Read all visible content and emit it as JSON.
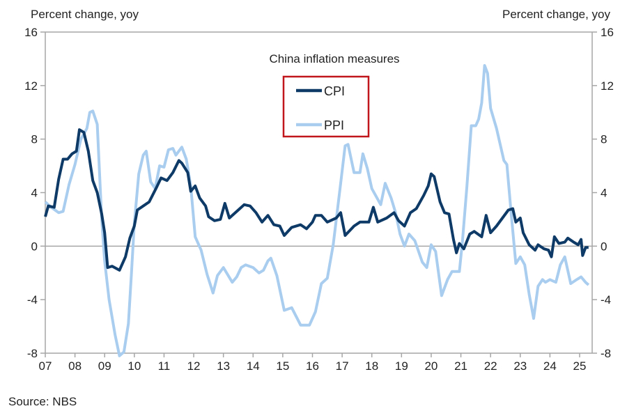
{
  "chart_data": {
    "type": "line",
    "title": "China inflation measures",
    "ylabel_left": "Percent change, yoy",
    "ylabel_right": "Percent change, yoy",
    "source": "Source:  NBS",
    "ylim": [
      -8,
      16
    ],
    "yticks": [
      16,
      12,
      8,
      4,
      0,
      -4,
      -8
    ],
    "xlim": [
      2007,
      2025.4
    ],
    "xticks": [
      2007,
      2008,
      2009,
      2010,
      2011,
      2012,
      2013,
      2014,
      2015,
      2016,
      2017,
      2018,
      2019,
      2020,
      2021,
      2022,
      2023,
      2024,
      2025
    ],
    "xtick_labels": [
      "07",
      "08",
      "09",
      "10",
      "11",
      "12",
      "13",
      "14",
      "15",
      "16",
      "17",
      "18",
      "19",
      "20",
      "21",
      "22",
      "23",
      "24",
      "25"
    ],
    "grid": false,
    "legend": {
      "placement": "top-center",
      "highlight_border_color": "#c0161c"
    },
    "series": [
      {
        "name": "CPI",
        "color": "#0d3a66",
        "points": [
          [
            2007.0,
            2.2
          ],
          [
            2007.1,
            3.0
          ],
          [
            2007.3,
            2.9
          ],
          [
            2007.45,
            5.0
          ],
          [
            2007.6,
            6.5
          ],
          [
            2007.75,
            6.5
          ],
          [
            2007.9,
            6.9
          ],
          [
            2008.05,
            7.1
          ],
          [
            2008.15,
            8.7
          ],
          [
            2008.3,
            8.5
          ],
          [
            2008.45,
            7.1
          ],
          [
            2008.6,
            4.9
          ],
          [
            2008.75,
            4.0
          ],
          [
            2008.9,
            2.4
          ],
          [
            2009.0,
            1.0
          ],
          [
            2009.1,
            -1.6
          ],
          [
            2009.25,
            -1.5
          ],
          [
            2009.5,
            -1.8
          ],
          [
            2009.7,
            -0.8
          ],
          [
            2009.85,
            0.6
          ],
          [
            2010.0,
            1.5
          ],
          [
            2010.1,
            2.7
          ],
          [
            2010.3,
            3.0
          ],
          [
            2010.5,
            3.3
          ],
          [
            2010.75,
            4.4
          ],
          [
            2010.9,
            5.1
          ],
          [
            2011.1,
            4.9
          ],
          [
            2011.3,
            5.5
          ],
          [
            2011.5,
            6.4
          ],
          [
            2011.6,
            6.2
          ],
          [
            2011.8,
            5.5
          ],
          [
            2011.9,
            4.1
          ],
          [
            2012.05,
            4.5
          ],
          [
            2012.2,
            3.6
          ],
          [
            2012.4,
            3.0
          ],
          [
            2012.5,
            2.2
          ],
          [
            2012.7,
            1.9
          ],
          [
            2012.9,
            2.0
          ],
          [
            2013.05,
            3.2
          ],
          [
            2013.2,
            2.1
          ],
          [
            2013.5,
            2.7
          ],
          [
            2013.7,
            3.1
          ],
          [
            2013.9,
            3.0
          ],
          [
            2014.1,
            2.5
          ],
          [
            2014.3,
            1.8
          ],
          [
            2014.5,
            2.3
          ],
          [
            2014.7,
            1.6
          ],
          [
            2014.9,
            1.5
          ],
          [
            2015.05,
            0.8
          ],
          [
            2015.3,
            1.4
          ],
          [
            2015.6,
            1.6
          ],
          [
            2015.8,
            1.3
          ],
          [
            2016.0,
            1.8
          ],
          [
            2016.1,
            2.3
          ],
          [
            2016.3,
            2.3
          ],
          [
            2016.5,
            1.8
          ],
          [
            2016.8,
            2.1
          ],
          [
            2016.95,
            2.5
          ],
          [
            2017.1,
            0.8
          ],
          [
            2017.4,
            1.5
          ],
          [
            2017.6,
            1.8
          ],
          [
            2017.9,
            1.8
          ],
          [
            2018.05,
            2.9
          ],
          [
            2018.2,
            1.8
          ],
          [
            2018.5,
            2.1
          ],
          [
            2018.75,
            2.5
          ],
          [
            2018.9,
            1.9
          ],
          [
            2019.1,
            1.5
          ],
          [
            2019.3,
            2.5
          ],
          [
            2019.5,
            2.8
          ],
          [
            2019.75,
            3.8
          ],
          [
            2019.9,
            4.5
          ],
          [
            2020.0,
            5.4
          ],
          [
            2020.1,
            5.2
          ],
          [
            2020.3,
            3.3
          ],
          [
            2020.45,
            2.5
          ],
          [
            2020.6,
            2.4
          ],
          [
            2020.75,
            0.5
          ],
          [
            2020.85,
            -0.5
          ],
          [
            2020.95,
            0.2
          ],
          [
            2021.1,
            -0.2
          ],
          [
            2021.3,
            0.9
          ],
          [
            2021.45,
            1.1
          ],
          [
            2021.7,
            0.7
          ],
          [
            2021.85,
            2.3
          ],
          [
            2022.0,
            1.0
          ],
          [
            2022.2,
            1.5
          ],
          [
            2022.4,
            2.1
          ],
          [
            2022.6,
            2.7
          ],
          [
            2022.75,
            2.8
          ],
          [
            2022.85,
            1.8
          ],
          [
            2023.0,
            2.1
          ],
          [
            2023.1,
            1.0
          ],
          [
            2023.3,
            0.1
          ],
          [
            2023.5,
            -0.3
          ],
          [
            2023.6,
            0.1
          ],
          [
            2023.8,
            -0.2
          ],
          [
            2023.95,
            -0.3
          ],
          [
            2024.05,
            -0.8
          ],
          [
            2024.15,
            0.7
          ],
          [
            2024.3,
            0.2
          ],
          [
            2024.5,
            0.3
          ],
          [
            2024.6,
            0.6
          ],
          [
            2024.8,
            0.3
          ],
          [
            2024.95,
            0.1
          ],
          [
            2025.05,
            0.5
          ],
          [
            2025.1,
            -0.7
          ],
          [
            2025.2,
            -0.1
          ],
          [
            2025.3,
            -0.1
          ]
        ]
      },
      {
        "name": "PPI",
        "color": "#a9cdee",
        "points": [
          [
            2007.0,
            3.3
          ],
          [
            2007.2,
            2.9
          ],
          [
            2007.45,
            2.5
          ],
          [
            2007.6,
            2.6
          ],
          [
            2007.8,
            4.6
          ],
          [
            2008.0,
            6.1
          ],
          [
            2008.2,
            8.0
          ],
          [
            2008.4,
            8.8
          ],
          [
            2008.5,
            10.0
          ],
          [
            2008.6,
            10.1
          ],
          [
            2008.75,
            9.1
          ],
          [
            2008.9,
            2.0
          ],
          [
            2009.0,
            -1.1
          ],
          [
            2009.15,
            -4.0
          ],
          [
            2009.35,
            -6.6
          ],
          [
            2009.5,
            -8.2
          ],
          [
            2009.65,
            -7.9
          ],
          [
            2009.8,
            -5.8
          ],
          [
            2009.9,
            -2.1
          ],
          [
            2010.0,
            1.7
          ],
          [
            2010.15,
            5.4
          ],
          [
            2010.3,
            6.8
          ],
          [
            2010.4,
            7.1
          ],
          [
            2010.55,
            4.8
          ],
          [
            2010.7,
            4.3
          ],
          [
            2010.85,
            6.0
          ],
          [
            2011.0,
            5.9
          ],
          [
            2011.15,
            7.2
          ],
          [
            2011.3,
            7.3
          ],
          [
            2011.4,
            6.8
          ],
          [
            2011.6,
            7.4
          ],
          [
            2011.75,
            6.5
          ],
          [
            2011.9,
            4.5
          ],
          [
            2012.05,
            0.7
          ],
          [
            2012.25,
            -0.3
          ],
          [
            2012.45,
            -2.1
          ],
          [
            2012.65,
            -3.5
          ],
          [
            2012.8,
            -2.2
          ],
          [
            2013.0,
            -1.6
          ],
          [
            2013.3,
            -2.7
          ],
          [
            2013.45,
            -2.3
          ],
          [
            2013.6,
            -1.6
          ],
          [
            2013.75,
            -1.4
          ],
          [
            2014.0,
            -1.6
          ],
          [
            2014.2,
            -2.0
          ],
          [
            2014.35,
            -1.8
          ],
          [
            2014.5,
            -1.1
          ],
          [
            2014.6,
            -0.9
          ],
          [
            2014.8,
            -2.2
          ],
          [
            2015.05,
            -4.8
          ],
          [
            2015.3,
            -4.6
          ],
          [
            2015.6,
            -5.9
          ],
          [
            2015.9,
            -5.9
          ],
          [
            2016.1,
            -4.9
          ],
          [
            2016.3,
            -2.8
          ],
          [
            2016.5,
            -2.4
          ],
          [
            2016.7,
            0.1
          ],
          [
            2016.95,
            4.7
          ],
          [
            2017.1,
            7.5
          ],
          [
            2017.2,
            7.6
          ],
          [
            2017.4,
            5.5
          ],
          [
            2017.6,
            5.5
          ],
          [
            2017.7,
            6.9
          ],
          [
            2017.85,
            5.8
          ],
          [
            2018.0,
            4.3
          ],
          [
            2018.3,
            3.1
          ],
          [
            2018.45,
            4.7
          ],
          [
            2018.65,
            3.6
          ],
          [
            2018.8,
            2.5
          ],
          [
            2018.95,
            0.9
          ],
          [
            2019.1,
            0.0
          ],
          [
            2019.25,
            0.9
          ],
          [
            2019.45,
            0.4
          ],
          [
            2019.7,
            -1.2
          ],
          [
            2019.85,
            -1.6
          ],
          [
            2020.0,
            0.1
          ],
          [
            2020.15,
            -0.4
          ],
          [
            2020.35,
            -3.7
          ],
          [
            2020.55,
            -2.5
          ],
          [
            2020.7,
            -1.9
          ],
          [
            2020.95,
            -1.9
          ],
          [
            2021.05,
            0.3
          ],
          [
            2021.2,
            4.4
          ],
          [
            2021.35,
            9.0
          ],
          [
            2021.5,
            9.0
          ],
          [
            2021.6,
            9.5
          ],
          [
            2021.7,
            10.7
          ],
          [
            2021.8,
            13.5
          ],
          [
            2021.9,
            12.9
          ],
          [
            2022.0,
            10.3
          ],
          [
            2022.2,
            8.8
          ],
          [
            2022.45,
            6.4
          ],
          [
            2022.55,
            6.1
          ],
          [
            2022.7,
            2.3
          ],
          [
            2022.85,
            -1.3
          ],
          [
            2023.0,
            -0.8
          ],
          [
            2023.15,
            -1.4
          ],
          [
            2023.3,
            -3.6
          ],
          [
            2023.45,
            -5.4
          ],
          [
            2023.6,
            -3.0
          ],
          [
            2023.75,
            -2.5
          ],
          [
            2023.85,
            -2.7
          ],
          [
            2024.0,
            -2.5
          ],
          [
            2024.2,
            -2.7
          ],
          [
            2024.35,
            -1.4
          ],
          [
            2024.5,
            -0.8
          ],
          [
            2024.7,
            -2.8
          ],
          [
            2024.9,
            -2.5
          ],
          [
            2025.05,
            -2.3
          ],
          [
            2025.2,
            -2.7
          ],
          [
            2025.3,
            -2.9
          ]
        ]
      }
    ]
  }
}
